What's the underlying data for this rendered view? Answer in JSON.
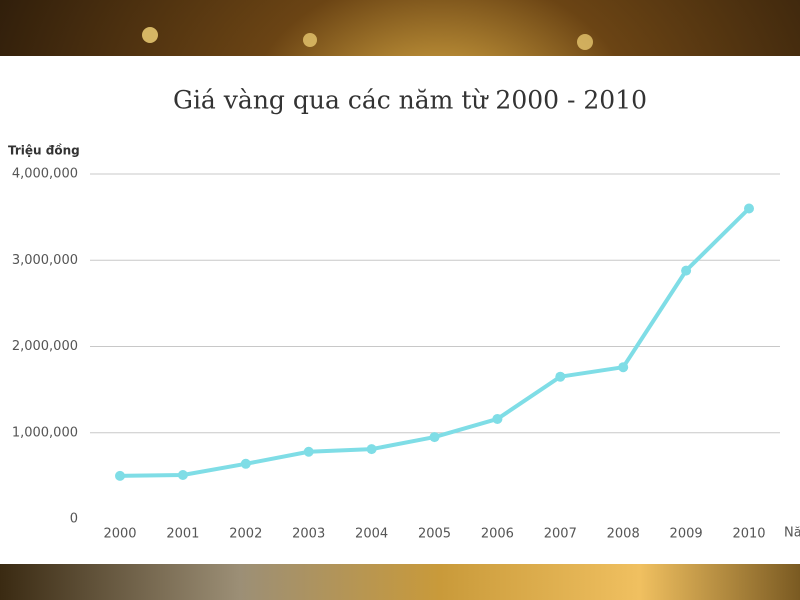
{
  "chart_data": {
    "type": "line",
    "title": "Giá vàng qua các năm từ 2000 - 2010",
    "y_label": "Triệu đồng",
    "x_label": "Nă",
    "categories": [
      "2000",
      "2001",
      "2002",
      "2003",
      "2004",
      "2005",
      "2006",
      "2007",
      "2008",
      "2009",
      "2010"
    ],
    "series": [
      {
        "color": "#7fdde6",
        "values": [
          500000,
          510000,
          640000,
          780000,
          810000,
          950000,
          1160000,
          1650000,
          1760000,
          2880000,
          3600000
        ]
      }
    ],
    "ylim": [
      0,
      4000000
    ],
    "yticks": [
      0,
      {
        "value": 1000000,
        "label": "1,000,000"
      },
      {
        "value": 2000000,
        "label": "2,000,000"
      },
      {
        "value": 3000000,
        "label": "3,000,000"
      },
      {
        "value": 4000000,
        "label": "4,000,000"
      }
    ],
    "grid": true
  }
}
